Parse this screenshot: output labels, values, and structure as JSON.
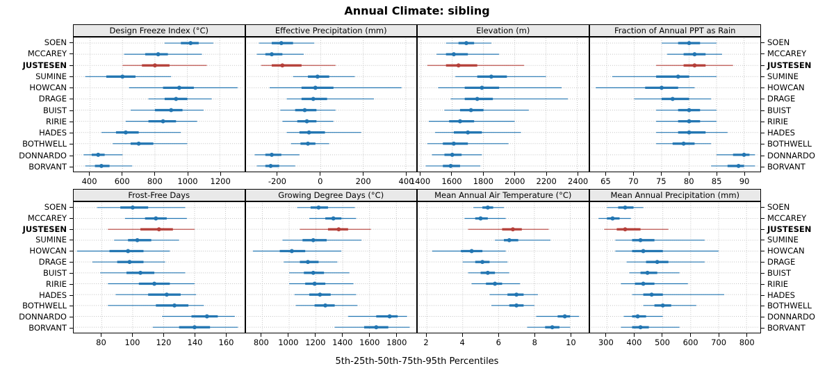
{
  "title": "Annual Climate: sibling",
  "xlabel": "5th-25th-50th-75th-95th Percentiles",
  "colors": {
    "series": "#2376b2",
    "highlight": "#b5403a",
    "grid": "#c2c2c2",
    "strip_bg": "#e9e9e9",
    "border": "#000000"
  },
  "chart_data": {
    "type": "percentile-dotplot",
    "statistics": [
      "5th",
      "25th",
      "50th",
      "75th",
      "95th"
    ],
    "categories": [
      "SOEN",
      "MCCAREY",
      "JUSTESEN",
      "SUMINE",
      "HOWCAN",
      "DRAGE",
      "BUIST",
      "RIRIE",
      "HADES",
      "BOTHWELL",
      "DONNARDO",
      "BORVANT"
    ],
    "highlight": "JUSTESEN",
    "grid": "dotted",
    "legend": "none",
    "panels": [
      {
        "title": "Design Freeze Index (°C)",
        "row": 0,
        "col": 0,
        "xlim": [
          300,
          1350
        ],
        "ticks": [
          400,
          600,
          800,
          1000,
          1200
        ],
        "values": [
          [
            860,
            960,
            1020,
            1070,
            1160
          ],
          [
            610,
            740,
            820,
            880,
            1090
          ],
          [
            600,
            720,
            800,
            890,
            1120
          ],
          [
            370,
            500,
            600,
            680,
            900
          ],
          [
            640,
            850,
            950,
            1040,
            1310
          ],
          [
            760,
            860,
            930,
            1000,
            1150
          ],
          [
            650,
            800,
            900,
            970,
            1100
          ],
          [
            620,
            760,
            850,
            930,
            1060
          ],
          [
            470,
            560,
            620,
            700,
            960
          ],
          [
            540,
            650,
            700,
            790,
            1000
          ],
          [
            360,
            410,
            450,
            490,
            600
          ],
          [
            370,
            430,
            470,
            520,
            660
          ]
        ]
      },
      {
        "title": "Effective Precipitation (mm)",
        "row": 0,
        "col": 1,
        "xlim": [
          -350,
          450
        ],
        "ticks": [
          -200,
          0,
          200,
          400
        ],
        "values": [
          [
            -290,
            -230,
            -185,
            -130,
            -30
          ],
          [
            -300,
            -260,
            -230,
            -180,
            -80
          ],
          [
            -280,
            -230,
            -180,
            -90,
            70
          ],
          [
            -130,
            -60,
            -15,
            40,
            160
          ],
          [
            -240,
            -90,
            -25,
            60,
            380
          ],
          [
            -160,
            -90,
            -35,
            30,
            250
          ],
          [
            -190,
            -120,
            -75,
            -20,
            70
          ],
          [
            -180,
            -110,
            -65,
            -20,
            60
          ],
          [
            -160,
            -100,
            -55,
            20,
            190
          ],
          [
            -140,
            -95,
            -60,
            -25,
            40
          ],
          [
            -310,
            -260,
            -230,
            -185,
            -100
          ],
          [
            -300,
            -260,
            -235,
            -195,
            -120
          ]
        ]
      },
      {
        "title": "Elevation (m)",
        "row": 0,
        "col": 2,
        "xlim": [
          1380,
          2470
        ],
        "ticks": [
          1400,
          1600,
          1800,
          2000,
          2200,
          2400
        ],
        "values": [
          [
            1560,
            1640,
            1690,
            1740,
            1850
          ],
          [
            1500,
            1560,
            1610,
            1700,
            1900
          ],
          [
            1440,
            1560,
            1640,
            1760,
            2060
          ],
          [
            1620,
            1760,
            1850,
            1950,
            2200
          ],
          [
            1510,
            1680,
            1790,
            1900,
            2300
          ],
          [
            1590,
            1680,
            1760,
            1860,
            2340
          ],
          [
            1550,
            1650,
            1720,
            1800,
            2090
          ],
          [
            1450,
            1580,
            1650,
            1740,
            2000
          ],
          [
            1490,
            1610,
            1700,
            1790,
            2040
          ],
          [
            1440,
            1540,
            1610,
            1700,
            1960
          ],
          [
            1470,
            1550,
            1600,
            1660,
            1790
          ],
          [
            1430,
            1540,
            1590,
            1650,
            1780
          ]
        ]
      },
      {
        "title": "Fraction of Annual PPT as Rain",
        "row": 0,
        "col": 3,
        "xlim": [
          62,
          93
        ],
        "ticks": [
          65,
          70,
          75,
          80,
          85,
          90
        ],
        "values": [
          [
            75,
            78,
            80,
            82,
            85
          ],
          [
            76,
            79,
            81,
            83,
            86
          ],
          [
            74,
            79,
            81,
            83,
            88
          ],
          [
            66,
            74,
            78,
            80,
            85
          ],
          [
            63,
            72,
            75,
            78,
            81
          ],
          [
            70,
            75,
            77,
            80,
            84
          ],
          [
            74,
            78,
            80,
            82,
            85
          ],
          [
            74,
            78,
            80,
            82,
            85
          ],
          [
            74,
            78,
            80,
            83,
            87
          ],
          [
            74,
            77,
            79,
            81,
            84
          ],
          [
            85,
            88,
            90,
            91,
            92
          ],
          [
            84,
            87,
            89,
            90,
            92
          ]
        ]
      },
      {
        "title": "Frost-Free Days",
        "row": 1,
        "col": 0,
        "xlim": [
          62,
          172
        ],
        "ticks": [
          80,
          100,
          120,
          140,
          160
        ],
        "values": [
          [
            77,
            92,
            100,
            110,
            134
          ],
          [
            95,
            108,
            115,
            122,
            135
          ],
          [
            84,
            105,
            117,
            126,
            140
          ],
          [
            88,
            97,
            103,
            112,
            130
          ],
          [
            64,
            85,
            97,
            107,
            124
          ],
          [
            74,
            90,
            98,
            107,
            121
          ],
          [
            79,
            96,
            105,
            114,
            134
          ],
          [
            84,
            104,
            114,
            124,
            140
          ],
          [
            89,
            110,
            122,
            131,
            141
          ],
          [
            84,
            115,
            127,
            136,
            146
          ],
          [
            119,
            138,
            148,
            155,
            166
          ],
          [
            113,
            130,
            140,
            150,
            168
          ]
        ]
      },
      {
        "title": "Growing Degree Days (°C)",
        "row": 1,
        "col": 1,
        "xlim": [
          680,
          1950
        ],
        "ticks": [
          800,
          1000,
          1200,
          1400,
          1600,
          1800
        ],
        "values": [
          [
            1060,
            1160,
            1220,
            1290,
            1490
          ],
          [
            1150,
            1270,
            1330,
            1390,
            1500
          ],
          [
            1080,
            1290,
            1370,
            1440,
            1610
          ],
          [
            950,
            1100,
            1180,
            1280,
            1540
          ],
          [
            730,
            930,
            1020,
            1120,
            1390
          ],
          [
            960,
            1080,
            1140,
            1220,
            1360
          ],
          [
            1000,
            1110,
            1180,
            1260,
            1450
          ],
          [
            1000,
            1120,
            1190,
            1270,
            1480
          ],
          [
            1040,
            1150,
            1230,
            1310,
            1500
          ],
          [
            1050,
            1190,
            1270,
            1340,
            1510
          ],
          [
            1440,
            1650,
            1750,
            1810,
            1880
          ],
          [
            1340,
            1560,
            1650,
            1740,
            1900
          ]
        ]
      },
      {
        "title": "Mean Annual Air Temperature (°C)",
        "row": 1,
        "col": 2,
        "xlim": [
          1.5,
          11
        ],
        "ticks": [
          2,
          4,
          6,
          8,
          10
        ],
        "values": [
          [
            4.6,
            5.1,
            5.4,
            5.7,
            6.3
          ],
          [
            4.1,
            4.7,
            5.0,
            5.4,
            6.4
          ],
          [
            4.3,
            6.2,
            6.8,
            7.3,
            8.8
          ],
          [
            5.8,
            6.3,
            6.6,
            7.1,
            8.9
          ],
          [
            2.3,
            3.9,
            4.5,
            5.1,
            6.4
          ],
          [
            4.0,
            4.7,
            5.1,
            5.5,
            6.5
          ],
          [
            4.3,
            5.0,
            5.4,
            5.8,
            6.6
          ],
          [
            4.5,
            5.3,
            5.8,
            6.2,
            7.2
          ],
          [
            5.5,
            6.5,
            7.0,
            7.4,
            8.2
          ],
          [
            5.6,
            6.6,
            7.0,
            7.4,
            8.0
          ],
          [
            8.1,
            9.3,
            9.7,
            10.0,
            10.5
          ],
          [
            7.6,
            8.6,
            9.0,
            9.4,
            10.0
          ]
        ]
      },
      {
        "title": "Mean Annual Precipitation (mm)",
        "row": 1,
        "col": 3,
        "xlim": [
          240,
          850
        ],
        "ticks": [
          300,
          400,
          500,
          600,
          700,
          800
        ],
        "values": [
          [
            300,
            340,
            365,
            395,
            430
          ],
          [
            270,
            300,
            320,
            345,
            385
          ],
          [
            290,
            335,
            365,
            420,
            520
          ],
          [
            330,
            390,
            420,
            470,
            650
          ],
          [
            330,
            390,
            430,
            500,
            700
          ],
          [
            370,
            440,
            480,
            520,
            650
          ],
          [
            380,
            420,
            445,
            480,
            560
          ],
          [
            350,
            400,
            430,
            470,
            590
          ],
          [
            390,
            430,
            460,
            500,
            720
          ],
          [
            430,
            470,
            500,
            530,
            620
          ],
          [
            360,
            390,
            410,
            440,
            500
          ],
          [
            350,
            390,
            420,
            450,
            560
          ]
        ]
      }
    ]
  }
}
